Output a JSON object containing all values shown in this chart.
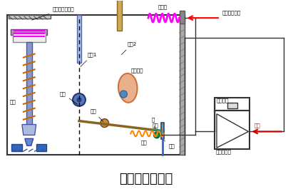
{
  "title": "气动阀门定位器",
  "title_fontsize": 13,
  "bg_color": "#ffffff",
  "labels": {
    "pneumatic_valve": "气动薄膜调节阀",
    "bellows": "波纹管",
    "pressure_input": "压力信号输入",
    "lever1": "杠杆1",
    "lever2": "杠杆2",
    "cam": "偏心凸轮",
    "roller": "滚轮",
    "flat_plate": "平板",
    "rocker": "摆杆",
    "axle": "轴",
    "spring": "弹簧",
    "baffle": "挡板",
    "nozzle": "喷嘴",
    "orifice": "恒节流孔",
    "amplifier": "气动放大器",
    "air_source": "气源"
  }
}
